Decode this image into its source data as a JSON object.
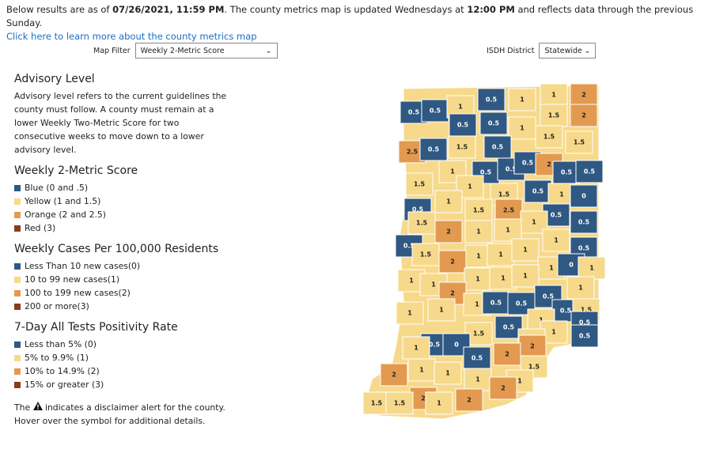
{
  "header": {
    "segments": [
      {
        "text": "Below results are as of ",
        "bold": false
      },
      {
        "text": "07/26/2021, 11:59 PM",
        "bold": true
      },
      {
        "text": ". The county metrics map is updated Wednesdays at ",
        "bold": false
      },
      {
        "text": "12:00 PM",
        "bold": true
      },
      {
        "text": " and reflects data through the previous Sunday.",
        "bold": false
      }
    ],
    "link": "Click here to learn more about the county metrics map"
  },
  "filters": {
    "map_filter": {
      "label": "Map Filter",
      "value": "Weekly 2-Metric Score"
    },
    "district": {
      "label": "ISDH District",
      "value": "Statewide"
    }
  },
  "advisory": {
    "title": "Advisory Level",
    "text": "Advisory level refers to the current guidelines the county must follow. A county must remain at a lower Weekly Two-Metric Score for two consecutive weeks to move down to a lower advisory level."
  },
  "legends": [
    {
      "title": "Weekly 2-Metric Score",
      "items": [
        {
          "text": "Blue (0 and .5)",
          "color": "#2f5882"
        },
        {
          "text": "Yellow (1 and 1.5)",
          "color": "#f7d98b"
        },
        {
          "text": "Orange (2 and 2.5)",
          "color": "#e39a50"
        },
        {
          "text": "Red (3)",
          "color": "#8c3b1e"
        }
      ]
    },
    {
      "title": "Weekly Cases Per 100,000 Residents",
      "items": [
        {
          "text": "Less Than 10 new cases(0)",
          "color": "#2f5882"
        },
        {
          "text": "10 to 99 new cases(1)",
          "color": "#f7d98b"
        },
        {
          "text": "100 to 199 new cases(2)",
          "color": "#e39a50"
        },
        {
          "text": "200 or more(3)",
          "color": "#8c3b1e"
        }
      ]
    },
    {
      "title": "7-Day All Tests Positivity Rate",
      "items": [
        {
          "text": "Less than 5% (0)",
          "color": "#2f5882"
        },
        {
          "text": "5% to 9.9% (1)",
          "color": "#f7d98b"
        },
        {
          "text": "10% to 14.9% (2)",
          "color": "#e39a50"
        },
        {
          "text": "15% or greater (3)",
          "color": "#8c3b1e"
        }
      ]
    }
  ],
  "disclaimer": {
    "before": "The",
    "after": "indicates a disclaimer alert for the county. Hover over the symbol for additional details."
  },
  "counties": [
    {
      "label": "0.5",
      "color": "#2f5882"
    },
    {
      "label": "0.5",
      "color": "#2f5882"
    },
    {
      "label": "1",
      "color": "#f7d98b"
    },
    {
      "label": "0.5",
      "color": "#2f5882"
    },
    {
      "label": "1",
      "color": "#f7d98b"
    },
    {
      "label": "1",
      "color": "#f7d98b"
    },
    {
      "label": "2",
      "color": "#e39a50"
    },
    {
      "label": "0.5",
      "color": "#2f5882"
    },
    {
      "label": "0.5",
      "color": "#2f5882"
    },
    {
      "label": "1.5",
      "color": "#f7d98b"
    },
    {
      "label": "2",
      "color": "#e39a50"
    },
    {
      "label": "1",
      "color": "#f7d98b"
    },
    {
      "label": "2.5",
      "color": "#e39a50"
    },
    {
      "label": "0.5",
      "color": "#2f5882"
    },
    {
      "label": "1.5",
      "color": "#f7d98b"
    },
    {
      "label": "0.5",
      "color": "#2f5882"
    },
    {
      "label": "1.5",
      "color": "#f7d98b"
    },
    {
      "label": "1.5",
      "color": "#f7d98b"
    },
    {
      "label": "1",
      "color": "#f7d98b"
    },
    {
      "label": "0.5",
      "color": "#2f5882"
    },
    {
      "label": "0.5",
      "color": "#2f5882"
    },
    {
      "label": "0.5",
      "color": "#2f5882"
    },
    {
      "label": "2",
      "color": "#e39a50"
    },
    {
      "label": "0.5",
      "color": "#2f5882"
    },
    {
      "label": "0.5",
      "color": "#2f5882"
    },
    {
      "label": "1",
      "color": "#f7d98b"
    },
    {
      "label": "1.5",
      "color": "#f7d98b"
    },
    {
      "label": "1.5",
      "color": "#f7d98b"
    },
    {
      "label": "0.5",
      "color": "#2f5882"
    },
    {
      "label": "1",
      "color": "#f7d98b"
    },
    {
      "label": "0",
      "color": "#2f5882"
    },
    {
      "label": "1",
      "color": "#f7d98b"
    },
    {
      "label": "0.5",
      "color": "#2f5882"
    },
    {
      "label": "1.5",
      "color": "#f7d98b"
    },
    {
      "label": "2.5",
      "color": "#e39a50"
    },
    {
      "label": "0.5",
      "color": "#2f5882"
    },
    {
      "label": "1.5",
      "color": "#f7d98b"
    },
    {
      "label": "1",
      "color": "#f7d98b"
    },
    {
      "label": "0.5",
      "color": "#2f5882"
    },
    {
      "label": "2",
      "color": "#e39a50"
    },
    {
      "label": "1",
      "color": "#f7d98b"
    },
    {
      "label": "1",
      "color": "#f7d98b"
    },
    {
      "label": "0.5",
      "color": "#2f5882"
    },
    {
      "label": "1.5",
      "color": "#f7d98b"
    },
    {
      "label": "1",
      "color": "#f7d98b"
    },
    {
      "label": "0.5",
      "color": "#2f5882"
    },
    {
      "label": "1",
      "color": "#f7d98b"
    },
    {
      "label": "1",
      "color": "#f7d98b"
    },
    {
      "label": "1",
      "color": "#f7d98b"
    },
    {
      "label": "2",
      "color": "#e39a50"
    },
    {
      "label": "1",
      "color": "#f7d98b"
    },
    {
      "label": "0",
      "color": "#2f5882"
    },
    {
      "label": "1",
      "color": "#f7d98b"
    },
    {
      "label": "1",
      "color": "#f7d98b"
    },
    {
      "label": "1",
      "color": "#f7d98b"
    },
    {
      "label": "1",
      "color": "#f7d98b"
    },
    {
      "label": "1",
      "color": "#f7d98b"
    },
    {
      "label": "1",
      "color": "#f7d98b"
    },
    {
      "label": "1",
      "color": "#f7d98b"
    },
    {
      "label": "2",
      "color": "#e39a50"
    },
    {
      "label": "0.5",
      "color": "#2f5882"
    },
    {
      "label": "1",
      "color": "#f7d98b"
    },
    {
      "label": "1",
      "color": "#f7d98b"
    },
    {
      "label": "1",
      "color": "#f7d98b"
    },
    {
      "label": "0.5",
      "color": "#2f5882"
    },
    {
      "label": "0.5",
      "color": "#2f5882"
    },
    {
      "label": "0.5",
      "color": "#2f5882"
    },
    {
      "label": "1.5",
      "color": "#f7d98b"
    },
    {
      "label": "1",
      "color": "#f7d98b"
    },
    {
      "label": "0.5",
      "color": "#2f5882"
    },
    {
      "label": "0.5",
      "color": "#2f5882"
    },
    {
      "label": "1.5",
      "color": "#f7d98b"
    },
    {
      "label": "0.5",
      "color": "#2f5882"
    },
    {
      "label": "0",
      "color": "#2f5882"
    },
    {
      "label": "1",
      "color": "#f7d98b"
    },
    {
      "label": "0.5",
      "color": "#2f5882"
    },
    {
      "label": "1",
      "color": "#f7d98b"
    },
    {
      "label": "1",
      "color": "#f7d98b"
    },
    {
      "label": "2",
      "color": "#e39a50"
    },
    {
      "label": "0.5",
      "color": "#2f5882"
    },
    {
      "label": "2",
      "color": "#e39a50"
    },
    {
      "label": "1.5",
      "color": "#f7d98b"
    },
    {
      "label": "2",
      "color": "#e39a50"
    },
    {
      "label": "1",
      "color": "#f7d98b"
    },
    {
      "label": "1",
      "color": "#f7d98b"
    },
    {
      "label": "1",
      "color": "#f7d98b"
    },
    {
      "label": "1",
      "color": "#f7d98b"
    },
    {
      "label": "2",
      "color": "#e39a50"
    },
    {
      "label": "2",
      "color": "#e39a50"
    },
    {
      "label": "2",
      "color": "#e39a50"
    },
    {
      "label": "1.5",
      "color": "#f7d98b"
    },
    {
      "label": "1.5",
      "color": "#f7d98b"
    },
    {
      "label": "1",
      "color": "#f7d98b"
    }
  ]
}
